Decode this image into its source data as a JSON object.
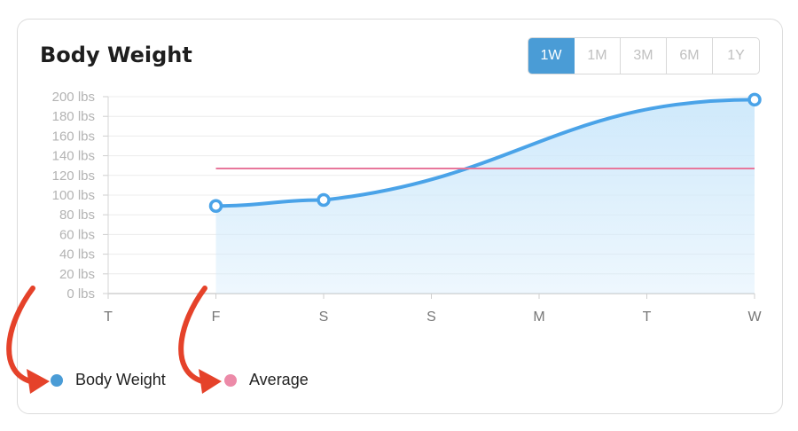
{
  "title": "Body Weight",
  "range_buttons": [
    {
      "label": "1W",
      "active": true
    },
    {
      "label": "1M",
      "active": false
    },
    {
      "label": "3M",
      "active": false
    },
    {
      "label": "6M",
      "active": false
    },
    {
      "label": "1Y",
      "active": false
    }
  ],
  "colors": {
    "series": "#4aa3e8",
    "fill": "#cfe9fb",
    "average": "#e8779b",
    "legend_body_weight": "#4a9cd6",
    "legend_average": "#ec8aa8",
    "arrow": "#e5422a",
    "active_button": "#4a9cd6"
  },
  "chart_data": {
    "type": "area",
    "categories": [
      "T",
      "F",
      "S",
      "S",
      "M",
      "T",
      "W"
    ],
    "ylim": [
      0,
      200
    ],
    "y_ticks": [
      0,
      20,
      40,
      60,
      80,
      100,
      120,
      140,
      160,
      180,
      200
    ],
    "y_unit": "lbs",
    "series": [
      {
        "name": "Body Weight",
        "points": [
          {
            "x": "F",
            "y": 89
          },
          {
            "x": "S",
            "y": 95
          },
          {
            "x": "W",
            "y": 197
          }
        ]
      },
      {
        "name": "Average",
        "points": [
          {
            "x": "F",
            "y": 127
          },
          {
            "x": "W",
            "y": 127
          }
        ]
      }
    ],
    "legend_position": "bottom-left",
    "grid": true
  },
  "legend": [
    {
      "label": "Body Weight"
    },
    {
      "label": "Average"
    }
  ]
}
